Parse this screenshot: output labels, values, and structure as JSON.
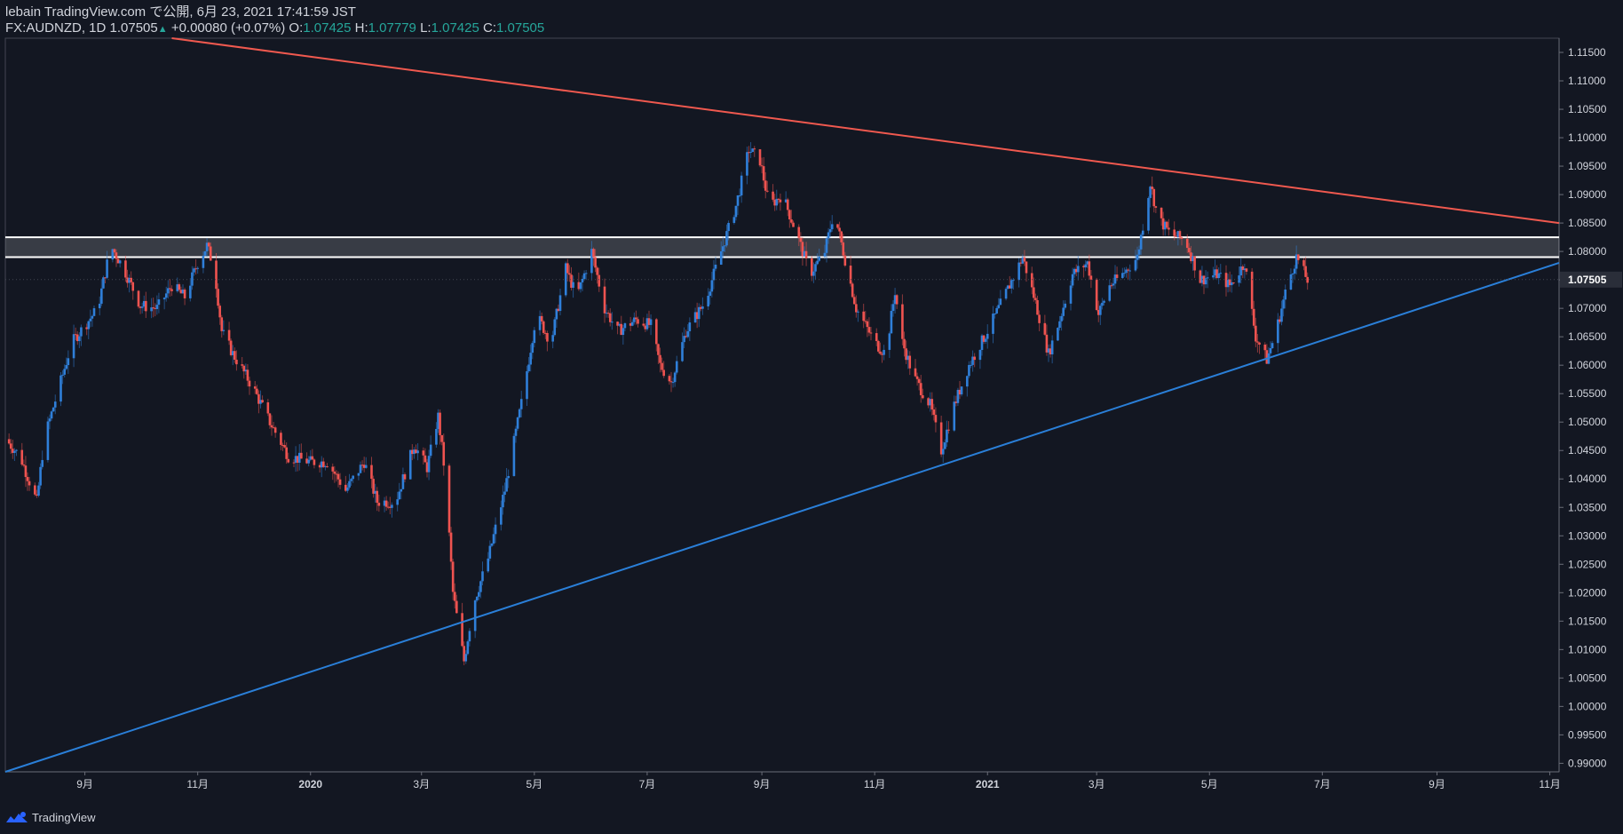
{
  "header": {
    "publish_line": "lebain TradingView.com で公開, 6月 23, 2021 17:41:59 JST",
    "symbol": "FX:AUDNZD, 1D",
    "last": "1.07505",
    "change": "+0.00080 (+0.07%)",
    "o_label": "O:",
    "o_value": "1.07425",
    "h_label": "H:",
    "h_value": "1.07779",
    "l_label": "L:",
    "l_value": "1.07425",
    "c_label": "C:",
    "c_value": "1.07505"
  },
  "footer": {
    "brand": "TradingView"
  },
  "colors": {
    "background": "#131722",
    "up": "#2f7fd9",
    "down": "#ef5350",
    "resistance_line": "#f0594f",
    "support_line": "#2a7fd8",
    "zone_border": "#ffffff",
    "price_badge": "#2a2e39"
  },
  "chart_data": {
    "type": "candlestick",
    "symbol": "FX:AUDNZD",
    "timeframe": "1D",
    "y_ticks": [
      "1.11500",
      "1.11000",
      "1.10500",
      "1.10000",
      "1.09500",
      "1.09000",
      "1.08500",
      "1.08000",
      "1.07500",
      "1.07000",
      "1.06500",
      "1.06000",
      "1.05500",
      "1.05000",
      "1.04500",
      "1.04000",
      "1.03500",
      "1.03000",
      "1.02500",
      "1.02000",
      "1.01500",
      "1.01000",
      "1.00500",
      "1.00000",
      "0.99500",
      "0.99000"
    ],
    "ylim": [
      0.9885,
      1.1175
    ],
    "last_price_label": "1.07505",
    "x_ticks": [
      {
        "date": "2019-09-01",
        "label": "9月",
        "bold": false
      },
      {
        "date": "2019-11-01",
        "label": "11月",
        "bold": false
      },
      {
        "date": "2020-01-01",
        "label": "2020",
        "bold": true
      },
      {
        "date": "2020-03-01",
        "label": "3月",
        "bold": false
      },
      {
        "date": "2020-05-01",
        "label": "5月",
        "bold": false
      },
      {
        "date": "2020-07-01",
        "label": "7月",
        "bold": false
      },
      {
        "date": "2020-09-01",
        "label": "9月",
        "bold": false
      },
      {
        "date": "2020-11-01",
        "label": "11月",
        "bold": false
      },
      {
        "date": "2021-01-01",
        "label": "2021",
        "bold": true
      },
      {
        "date": "2021-03-01",
        "label": "3月",
        "bold": false
      },
      {
        "date": "2021-05-01",
        "label": "5月",
        "bold": false
      },
      {
        "date": "2021-07-01",
        "label": "7月",
        "bold": false
      },
      {
        "date": "2021-09-01",
        "label": "9月",
        "bold": false
      },
      {
        "date": "2021-11-01",
        "label": "11月",
        "bold": false
      }
    ],
    "xlim": [
      "2019-07-20",
      "2021-11-06"
    ],
    "close_path": [
      [
        "2019-07-20",
        1.047
      ],
      [
        "2019-07-28",
        1.044
      ],
      [
        "2019-08-06",
        1.036
      ],
      [
        "2019-08-10",
        1.047
      ],
      [
        "2019-08-25",
        1.064
      ],
      [
        "2019-09-08",
        1.07
      ],
      [
        "2019-09-15",
        1.081
      ],
      [
        "2019-09-22",
        1.077
      ],
      [
        "2019-10-01",
        1.0705
      ],
      [
        "2019-10-10",
        1.07
      ],
      [
        "2019-10-18",
        1.074
      ],
      [
        "2019-10-25",
        1.072
      ],
      [
        "2019-11-01",
        1.078
      ],
      [
        "2019-11-06",
        1.081
      ],
      [
        "2019-11-10",
        1.077
      ],
      [
        "2019-11-14",
        1.066
      ],
      [
        "2019-11-20",
        1.062
      ],
      [
        "2019-12-01",
        1.056
      ],
      [
        "2019-12-10",
        1.05
      ],
      [
        "2019-12-20",
        1.044
      ],
      [
        "2020-01-01",
        1.043
      ],
      [
        "2020-01-10",
        1.043
      ],
      [
        "2020-01-20",
        1.038
      ],
      [
        "2020-01-30",
        1.043
      ],
      [
        "2020-02-06",
        1.036
      ],
      [
        "2020-02-16",
        1.036
      ],
      [
        "2020-02-26",
        1.046
      ],
      [
        "2020-03-04",
        1.042
      ],
      [
        "2020-03-10",
        1.051
      ],
      [
        "2020-03-14",
        1.04
      ],
      [
        "2020-03-18",
        1.02
      ],
      [
        "2020-03-24",
        1.008
      ],
      [
        "2020-03-29",
        1.018
      ],
      [
        "2020-04-06",
        1.026
      ],
      [
        "2020-04-15",
        1.038
      ],
      [
        "2020-04-25",
        1.055
      ],
      [
        "2020-05-02",
        1.069
      ],
      [
        "2020-05-10",
        1.064
      ],
      [
        "2020-05-18",
        1.077
      ],
      [
        "2020-05-24",
        1.072
      ],
      [
        "2020-06-01",
        1.08
      ],
      [
        "2020-06-08",
        1.07
      ],
      [
        "2020-06-15",
        1.066
      ],
      [
        "2020-06-25",
        1.068
      ],
      [
        "2020-07-03",
        1.067
      ],
      [
        "2020-07-08",
        1.06
      ],
      [
        "2020-07-14",
        1.057
      ],
      [
        "2020-07-22",
        1.066
      ],
      [
        "2020-08-01",
        1.071
      ],
      [
        "2020-08-10",
        1.08
      ],
      [
        "2020-08-18",
        1.088
      ],
      [
        "2020-08-25",
        1.098
      ],
      [
        "2020-08-31",
        1.096
      ],
      [
        "2020-09-05",
        1.088
      ],
      [
        "2020-09-12",
        1.09
      ],
      [
        "2020-09-20",
        1.083
      ],
      [
        "2020-09-27",
        1.076
      ],
      [
        "2020-10-05",
        1.08
      ],
      [
        "2020-10-10",
        1.087
      ],
      [
        "2020-10-15",
        1.08
      ],
      [
        "2020-10-22",
        1.07
      ],
      [
        "2020-11-01",
        1.064
      ],
      [
        "2020-11-07",
        1.062
      ],
      [
        "2020-11-12",
        1.073
      ],
      [
        "2020-11-16",
        1.064
      ],
      [
        "2020-11-22",
        1.058
      ],
      [
        "2020-12-01",
        1.053
      ],
      [
        "2020-12-07",
        1.045
      ],
      [
        "2020-12-14",
        1.053
      ],
      [
        "2020-12-22",
        1.06
      ],
      [
        "2021-01-01",
        1.066
      ],
      [
        "2021-01-10",
        1.072
      ],
      [
        "2021-01-20",
        1.079
      ],
      [
        "2021-01-27",
        1.071
      ],
      [
        "2021-02-03",
        1.062
      ],
      [
        "2021-02-09",
        1.068
      ],
      [
        "2021-02-16",
        1.076
      ],
      [
        "2021-02-24",
        1.078
      ],
      [
        "2021-03-02",
        1.069
      ],
      [
        "2021-03-08",
        1.074
      ],
      [
        "2021-03-15",
        1.076
      ],
      [
        "2021-03-23",
        1.079
      ],
      [
        "2021-03-30",
        1.092
      ],
      [
        "2021-04-03",
        1.086
      ],
      [
        "2021-04-10",
        1.083
      ],
      [
        "2021-04-18",
        1.082
      ],
      [
        "2021-04-26",
        1.075
      ],
      [
        "2021-05-05",
        1.076
      ],
      [
        "2021-05-12",
        1.074
      ],
      [
        "2021-05-20",
        1.078
      ],
      [
        "2021-05-26",
        1.065
      ],
      [
        "2021-06-01",
        1.061
      ],
      [
        "2021-06-06",
        1.066
      ],
      [
        "2021-06-12",
        1.074
      ],
      [
        "2021-06-17",
        1.079
      ],
      [
        "2021-06-23",
        1.075
      ]
    ],
    "trendlines": [
      {
        "name": "resistance",
        "color": "#f0594f",
        "p1": [
          "2019-10-18",
          1.1175
        ],
        "p2": [
          "2021-11-06",
          1.085
        ]
      },
      {
        "name": "support",
        "color": "#2a7fd8",
        "p1": [
          "2019-07-20",
          0.9885
        ],
        "p2": [
          "2021-11-06",
          1.078
        ]
      }
    ],
    "zone": {
      "top": 1.0825,
      "bottom": 1.079,
      "x_start": "2019-07-20"
    },
    "grid": false,
    "legend": "none"
  }
}
